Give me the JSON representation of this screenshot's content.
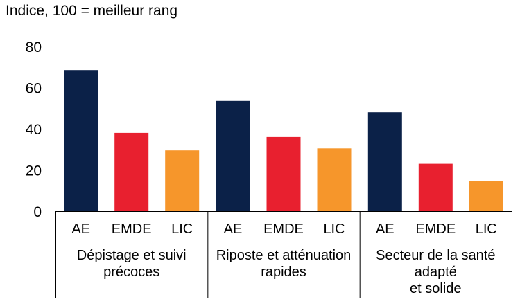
{
  "chart_data": {
    "type": "bar",
    "ylabel": "Indice, 100 = meilleur rang",
    "ylim": [
      0,
      80
    ],
    "yticks": [
      0,
      20,
      40,
      60,
      80
    ],
    "grid": false,
    "groups": [
      {
        "label": [
          "Dépistage et suivi",
          "précoces"
        ],
        "bars": [
          {
            "category": "AE",
            "value": 68.5
          },
          {
            "category": "EMDE",
            "value": 38
          },
          {
            "category": "LIC",
            "value": 29.5
          }
        ]
      },
      {
        "label": [
          "Riposte et atténuation",
          "rapides"
        ],
        "bars": [
          {
            "category": "AE",
            "value": 53.5
          },
          {
            "category": "EMDE",
            "value": 36
          },
          {
            "category": "LIC",
            "value": 30.5
          }
        ]
      },
      {
        "label": [
          "Secteur de la santé",
          "adapté",
          "et solide"
        ],
        "bars": [
          {
            "category": "AE",
            "value": 48
          },
          {
            "category": "EMDE",
            "value": 23
          },
          {
            "category": "LIC",
            "value": 14.5
          }
        ]
      }
    ],
    "colors": {
      "AE": "#0b2148",
      "EMDE": "#e8202f",
      "LIC": "#f6962b"
    }
  }
}
